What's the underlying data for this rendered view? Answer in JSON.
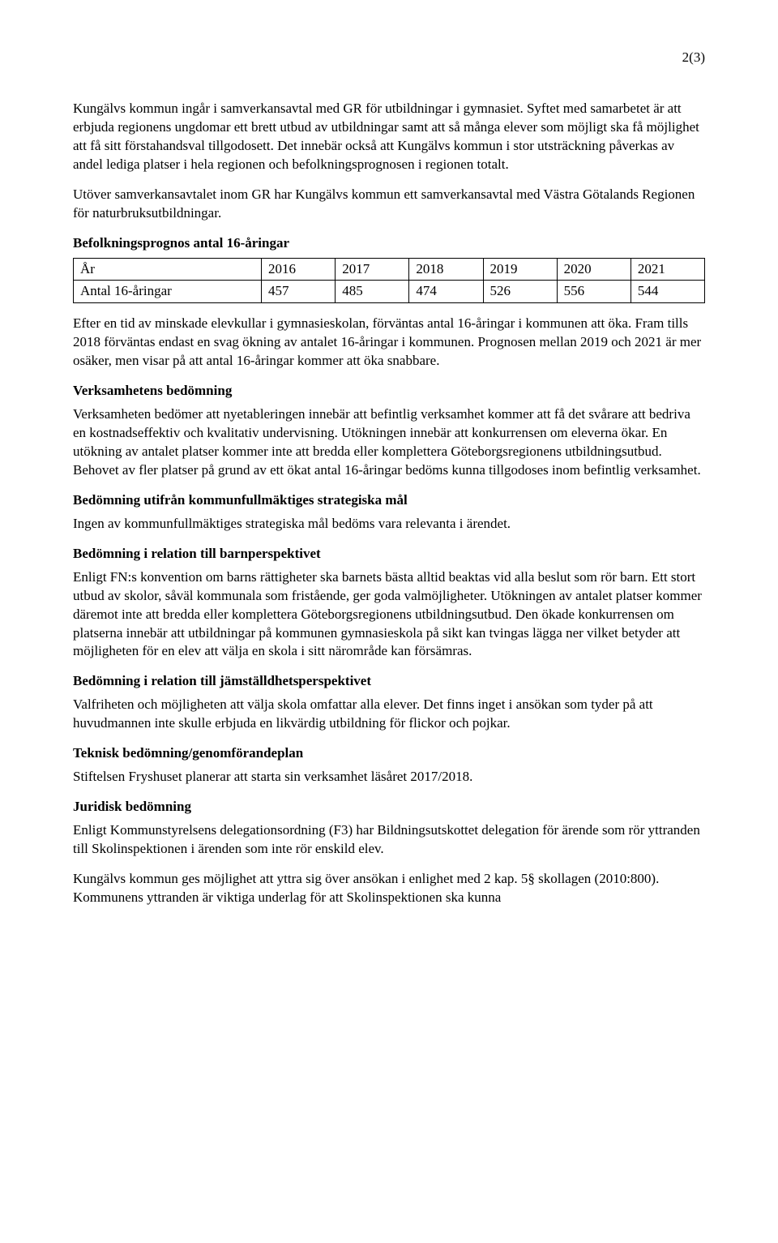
{
  "pageNumber": "2(3)",
  "paragraphs": {
    "p1": "Kungälvs kommun ingår i samverkansavtal med GR för utbildningar i gymnasiet. Syftet med samarbetet är att erbjuda regionens ungdomar ett brett utbud av utbildningar samt att så många elever som möjligt ska få möjlighet att få sitt förstahandsval tillgodosett. Det innebär också att Kungälvs kommun i stor utsträckning påverkas av andel lediga platser i hela regionen och befolkningsprognosen i regionen totalt.",
    "p2": "Utöver samverkansavtalet inom GR har Kungälvs kommun ett samverkansavtal med Västra Götalands Regionen för naturbruksutbildningar.",
    "tableTitle": "Befolkningsprognos antal 16-åringar",
    "p3": "Efter en tid av minskade elevkullar i gymnasieskolan, förväntas antal 16-åringar i kommunen att öka. Fram tills 2018 förväntas endast en svag ökning av antalet 16-åringar i kommunen. Prognosen mellan 2019 och 2021 är mer osäker, men visar på att antal 16-åringar kommer att öka snabbare.",
    "h1": "Verksamhetens bedömning",
    "p4": "Verksamheten bedömer att nyetableringen innebär att befintlig verksamhet kommer att få det svårare att bedriva en kostnadseffektiv och kvalitativ undervisning. Utökningen innebär att konkurrensen om eleverna ökar. En utökning av antalet platser kommer inte att bredda eller komplettera Göteborgsregionens utbildningsutbud. Behovet av fler platser på grund av ett ökat antal 16-åringar bedöms kunna tillgodoses inom befintlig verksamhet.",
    "h2": "Bedömning utifrån kommunfullmäktiges strategiska mål",
    "p5": "Ingen av kommunfullmäktiges strategiska mål bedöms vara relevanta i ärendet.",
    "h3": "Bedömning i relation till barnperspektivet",
    "p6": "Enligt FN:s konvention om barns rättigheter ska barnets bästa alltid beaktas vid alla beslut som rör barn. Ett stort utbud av skolor, såväl kommunala som fristående, ger goda valmöjligheter. Utökningen av antalet platser kommer däremot inte att bredda eller komplettera Göteborgsregionens utbildningsutbud. Den ökade konkurrensen om platserna innebär att utbildningar på kommunen gymnasieskola på sikt kan tvingas lägga ner vilket betyder att möjligheten för en elev att välja en skola i sitt närområde kan försämras.",
    "h4": "Bedömning i relation till jämställdhetsperspektivet",
    "p7": "Valfriheten och möjligheten att välja skola omfattar alla elever. Det finns inget i ansökan som tyder på att huvudmannen inte skulle erbjuda en likvärdig utbildning för flickor och pojkar.",
    "h5": "Teknisk bedömning/genomförandeplan",
    "p8": "Stiftelsen Fryshuset planerar att starta sin verksamhet läsåret 2017/2018.",
    "h6": "Juridisk bedömning",
    "p9": "Enligt Kommunstyrelsens delegationsordning (F3) har Bildningsutskottet delegation för ärende som rör yttranden till Skolinspektionen i ärenden som inte rör enskild elev.",
    "p10": "Kungälvs kommun ges möjlighet att yttra sig över ansökan i enlighet med 2 kap. 5§ skollagen (2010:800). Kommunens yttranden är viktiga underlag för att Skolinspektionen ska kunna"
  },
  "table": {
    "headerRow": [
      "År",
      "2016",
      "2017",
      "2018",
      "2019",
      "2020",
      "2021"
    ],
    "dataRow": [
      "Antal 16-åringar",
      "457",
      "485",
      "474",
      "526",
      "556",
      "544"
    ]
  }
}
